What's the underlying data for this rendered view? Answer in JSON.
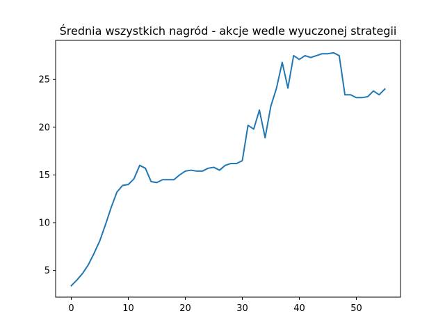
{
  "chart_data": {
    "type": "line",
    "title": "Średnia wszystkich nagród - akcje wedle wyuczonej strategii",
    "xlabel": "",
    "ylabel": "",
    "xlim": [
      -2.75,
      57.75
    ],
    "ylim": [
      2.2,
      29.1
    ],
    "xticks": [
      0,
      10,
      20,
      30,
      40,
      50
    ],
    "yticks": [
      5,
      10,
      15,
      20,
      25
    ],
    "grid": false,
    "colors": {
      "series": "#1f77b4"
    },
    "series": [
      {
        "x": [
          0,
          1,
          2,
          3,
          4,
          5,
          6,
          7,
          8,
          9,
          10,
          11,
          12,
          13,
          14,
          15,
          16,
          17,
          18,
          19,
          20,
          21,
          22,
          23,
          24,
          25,
          26,
          27,
          28,
          29,
          30,
          31,
          32,
          33,
          34,
          35,
          36,
          37,
          38,
          39,
          40,
          41,
          42,
          43,
          44,
          45,
          46,
          47,
          48,
          49,
          50,
          51,
          52,
          53,
          54,
          55
        ],
        "values": [
          3.4,
          4.0,
          4.7,
          5.6,
          6.8,
          8.1,
          9.8,
          11.6,
          13.2,
          13.9,
          14.0,
          14.6,
          16.0,
          15.7,
          14.3,
          14.2,
          14.5,
          14.5,
          14.5,
          15.0,
          15.4,
          15.5,
          15.4,
          15.4,
          15.7,
          15.8,
          15.5,
          16.0,
          16.2,
          16.2,
          16.5,
          20.2,
          19.8,
          21.8,
          18.9,
          22.2,
          24.1,
          26.8,
          24.1,
          27.5,
          27.1,
          27.5,
          27.3,
          27.5,
          27.7,
          27.7,
          27.8,
          27.5,
          23.4,
          23.4,
          23.1,
          23.1,
          23.2,
          23.8,
          23.4,
          24.0
        ]
      }
    ]
  }
}
